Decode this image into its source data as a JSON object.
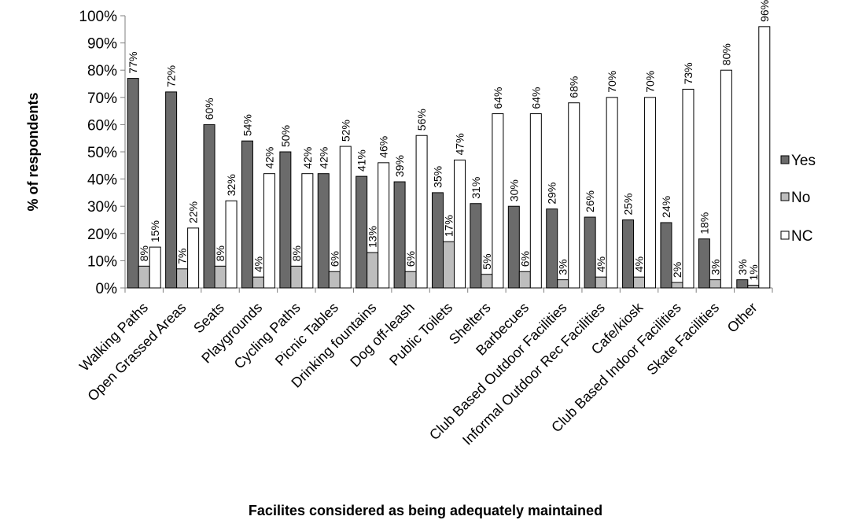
{
  "chart_data": {
    "type": "bar",
    "xlabel": "Facilites considered as being adequately maintained",
    "ylabel": "% of respondents",
    "ylim": [
      0,
      100
    ],
    "yticks": [
      "0%",
      "10%",
      "20%",
      "30%",
      "40%",
      "50%",
      "60%",
      "70%",
      "80%",
      "90%",
      "100%"
    ],
    "categories": [
      "Walking Paths",
      "Open Grassed Areas",
      "Seats",
      "Playgrounds",
      "Cycling Paths",
      "Picnic Tables",
      "Drinking fountains",
      "Dog off-leash",
      "Public Toilets",
      "Shelters",
      "Barbecues",
      "Club Based Outdoor Facilities",
      "Informal Outdoor Rec Facilities",
      "Cafe/kiosk",
      "Club Based Indoor Facilities",
      "Skate Facilities",
      "Other"
    ],
    "series": [
      {
        "name": "Yes",
        "color": "#6b6b6b",
        "values": [
          77,
          72,
          60,
          54,
          50,
          42,
          41,
          39,
          35,
          31,
          30,
          29,
          26,
          25,
          24,
          18,
          3
        ],
        "labels": [
          "77%",
          "72%",
          "60%",
          "54%",
          "50%",
          "42%",
          "41%",
          "39%",
          "35%",
          "31%",
          "30%",
          "29%",
          "26%",
          "25%",
          "24%",
          "18%",
          "3%"
        ]
      },
      {
        "name": "No",
        "color": "#bdbdbd",
        "values": [
          8,
          7,
          8,
          4,
          8,
          6,
          13,
          6,
          17,
          5,
          6,
          3,
          4,
          4,
          2,
          3,
          1
        ],
        "labels": [
          "8%",
          "7%",
          "8%",
          "4%",
          "8%",
          "6%",
          "13%",
          "6%",
          "17%",
          "5%",
          "6%",
          "3%",
          "4%",
          "4%",
          "2%",
          "3%",
          "1%"
        ]
      },
      {
        "name": "NC",
        "color": "#ffffff",
        "values": [
          15,
          22,
          32,
          42,
          42,
          52,
          46,
          56,
          47,
          64,
          64,
          68,
          70,
          70,
          73,
          80,
          96
        ],
        "labels": [
          "15%",
          "22%",
          "32%",
          "42%",
          "42%",
          "52%",
          "46%",
          "56%",
          "47%",
          "64%",
          "64%",
          "68%",
          "70%",
          "70%",
          "73%",
          "80%",
          "96%"
        ]
      }
    ],
    "legend": {
      "position": "right",
      "entries": [
        "Yes",
        "No",
        "NC"
      ]
    },
    "grid": false
  }
}
